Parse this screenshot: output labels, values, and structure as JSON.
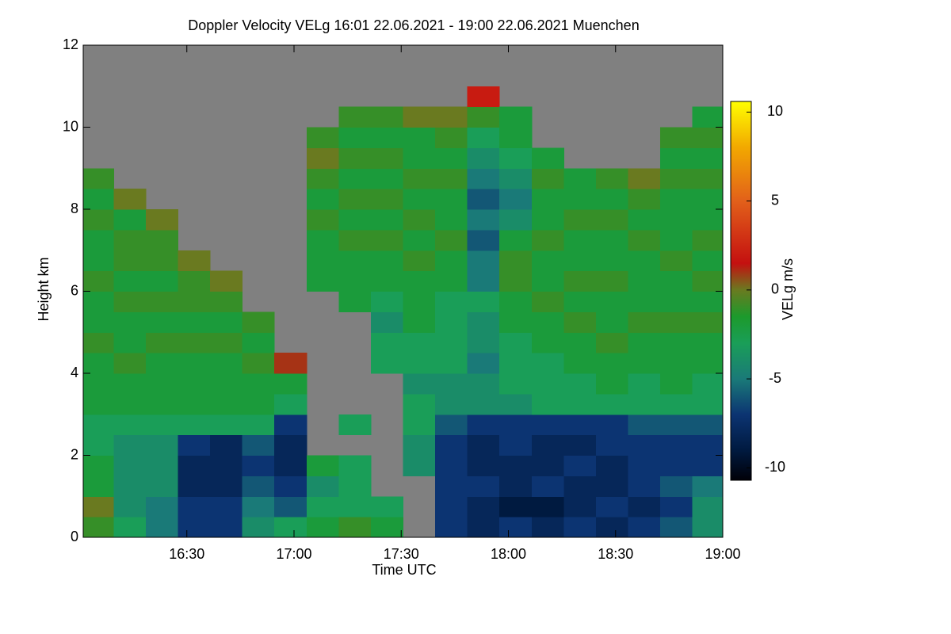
{
  "chart_data": {
    "type": "heatmap",
    "title": "Doppler Velocity VELg   16:01 22.06.2021 - 19:00 22.06.2021 Muenchen",
    "x_label": "Time UTC",
    "y_label": "Height km",
    "colorbar_label": "VELg m/s",
    "xlim": [
      961,
      1140
    ],
    "xticks": [
      {
        "value": 990,
        "label": "16:30"
      },
      {
        "value": 1020,
        "label": "17:00"
      },
      {
        "value": 1050,
        "label": "17:30"
      },
      {
        "value": 1080,
        "label": "18:00"
      },
      {
        "value": 1110,
        "label": "18:30"
      },
      {
        "value": 1140,
        "label": "19:00"
      }
    ],
    "ylim": [
      0,
      12
    ],
    "yticks": [
      0,
      2,
      4,
      6,
      8,
      10,
      12
    ],
    "clim": [
      -10.7,
      10.6
    ],
    "cticks": [
      -10,
      -5,
      0,
      5,
      10
    ],
    "nodata_color": "#808080",
    "colormap": [
      {
        "value": -10.7,
        "color": "#000008"
      },
      {
        "value": -9,
        "color": "#001a40"
      },
      {
        "value": -7,
        "color": "#0c3472"
      },
      {
        "value": -5,
        "color": "#1a7a78"
      },
      {
        "value": -3,
        "color": "#1a9e58"
      },
      {
        "value": -1.5,
        "color": "#1c9a2c"
      },
      {
        "value": 0,
        "color": "#6a7a20"
      },
      {
        "value": 1.5,
        "color": "#c41010"
      },
      {
        "value": 5,
        "color": "#e2601a"
      },
      {
        "value": 8,
        "color": "#f2a800"
      },
      {
        "value": 10.6,
        "color": "#ffff00"
      }
    ],
    "x": [
      965,
      974,
      983,
      992,
      1001,
      1010,
      1019,
      1028,
      1037,
      1046,
      1055,
      1064,
      1073,
      1082,
      1091,
      1100,
      1109,
      1118,
      1127,
      1136
    ],
    "y": [
      0.25,
      0.75,
      1.25,
      1.75,
      2.25,
      2.75,
      3.25,
      3.75,
      4.25,
      4.75,
      5.25,
      5.75,
      6.25,
      6.75,
      7.25,
      7.75,
      8.25,
      8.75,
      9.25,
      9.75,
      10.25,
      10.75,
      11.25,
      11.75
    ],
    "values": [
      [
        -1,
        0,
        -2,
        -2,
        -3,
        -3,
        -2,
        -2,
        -2,
        -1,
        -2,
        -2,
        -1,
        -2,
        -2,
        -1,
        -2,
        -1,
        null,
        null,
        null,
        null,
        null,
        null
      ],
      [
        -3,
        -4,
        -4,
        -4,
        -4,
        -3,
        -2,
        -2,
        -1,
        -2,
        -2,
        -1,
        -2,
        -1,
        -1,
        -2,
        0,
        null,
        null,
        null,
        null,
        null,
        null,
        null
      ],
      [
        -5,
        -5,
        -4,
        -4,
        -4,
        -3,
        -2,
        -2,
        -2,
        -1,
        -2,
        -1,
        -2,
        -1,
        -1,
        0,
        null,
        null,
        null,
        null,
        null,
        null,
        null,
        null
      ],
      [
        -7,
        -7,
        -8,
        -8,
        -7,
        -3,
        -2,
        -2,
        -2,
        -1,
        -2,
        -1,
        -1,
        0,
        null,
        null,
        null,
        null,
        null,
        null,
        null,
        null,
        null,
        null
      ],
      [
        -7,
        -7,
        -8,
        -8,
        -8,
        -3,
        -2,
        -2,
        -2,
        -1,
        -2,
        -1,
        0,
        null,
        null,
        null,
        null,
        null,
        null,
        null,
        null,
        null,
        null,
        null
      ],
      [
        -4,
        -5,
        -6,
        -7,
        -6,
        -3,
        -2,
        -2,
        -1,
        -2,
        -1,
        null,
        null,
        null,
        null,
        null,
        null,
        null,
        null,
        null,
        null,
        null,
        null,
        null
      ],
      [
        -3,
        -6,
        -7,
        -8,
        -8,
        -7,
        -3,
        -2,
        1,
        null,
        null,
        null,
        null,
        null,
        null,
        null,
        null,
        null,
        null,
        null,
        null,
        null,
        null,
        null
      ],
      [
        -2,
        -3,
        -4,
        -2,
        null,
        null,
        null,
        null,
        null,
        null,
        null,
        null,
        -2,
        -2,
        -2,
        -1,
        -2,
        -1,
        0,
        -1,
        null,
        null,
        null,
        null
      ],
      [
        -1,
        -3,
        -3,
        -3,
        null,
        -3,
        null,
        null,
        null,
        null,
        null,
        -2,
        -2,
        -2,
        -1,
        -2,
        -1,
        -2,
        -1,
        -2,
        -1,
        null,
        null,
        null
      ],
      [
        -2,
        -3,
        null,
        null,
        null,
        null,
        null,
        null,
        -3,
        -3,
        -4,
        -3,
        -2,
        -2,
        -1,
        -2,
        -1,
        -2,
        -1,
        -2,
        -1,
        null,
        null,
        null
      ],
      [
        null,
        null,
        null,
        -4,
        -4,
        -3,
        -3,
        -4,
        -3,
        -3,
        -2,
        -2,
        -2,
        -1,
        -2,
        -1,
        -2,
        -1,
        -2,
        -2,
        0,
        null,
        null,
        null
      ],
      [
        -7,
        -7,
        -7,
        -7,
        -7,
        -6,
        -4,
        -4,
        -3,
        -3,
        -3,
        -3,
        -2,
        -2,
        -1,
        -2,
        -2,
        -1,
        -2,
        -1,
        0,
        null,
        null,
        null
      ],
      [
        -8,
        -8,
        -7,
        -8,
        -8,
        -7,
        -4,
        -4,
        -5,
        -4,
        -4,
        -3,
        -5,
        -5,
        -6,
        -5,
        -6,
        -5,
        -4,
        -3,
        -1,
        2,
        null,
        null
      ],
      [
        -7,
        -9,
        -8,
        -8,
        -7,
        -7,
        -4,
        -3,
        -3,
        -3,
        -2,
        -2,
        -1,
        -1,
        -2,
        -4,
        -5,
        -4,
        -3,
        -2,
        -2,
        null,
        null,
        null
      ],
      [
        -8,
        -9,
        -7,
        -8,
        -8,
        -7,
        -3,
        -3,
        -3,
        -2,
        -2,
        -1,
        -2,
        -2,
        -1,
        -2,
        -2,
        -1,
        -2,
        null,
        null,
        null,
        null,
        null
      ],
      [
        -7,
        -8,
        -8,
        -7,
        -8,
        -7,
        -3,
        -3,
        -2,
        -2,
        -1,
        -2,
        -1,
        -2,
        -2,
        -1,
        -2,
        -2,
        null,
        null,
        null,
        null,
        null,
        null
      ],
      [
        -8,
        -7,
        -8,
        -8,
        -7,
        -7,
        -3,
        -2,
        -2,
        -1,
        -2,
        -2,
        -1,
        -2,
        -2,
        -1,
        -2,
        -1,
        null,
        null,
        null,
        null,
        null,
        null
      ],
      [
        -7,
        -8,
        -7,
        -7,
        -7,
        -6,
        -3,
        -3,
        -2,
        -2,
        -1,
        -2,
        -2,
        -2,
        -1,
        -2,
        -1,
        0,
        null,
        null,
        null,
        null,
        null,
        null
      ],
      [
        -6,
        -7,
        -6,
        -7,
        -7,
        -6,
        -3,
        -2,
        -2,
        -2,
        -1,
        -2,
        -2,
        -1,
        -2,
        -2,
        -2,
        -1,
        -2,
        -1,
        null,
        null,
        null,
        null
      ],
      [
        -4,
        -4,
        -5,
        -7,
        -7,
        -6,
        -3,
        -3,
        -2,
        -2,
        -1,
        -2,
        -1,
        -2,
        -1,
        -2,
        -2,
        -1,
        -2,
        -1,
        -2,
        null,
        null,
        null
      ]
    ]
  }
}
